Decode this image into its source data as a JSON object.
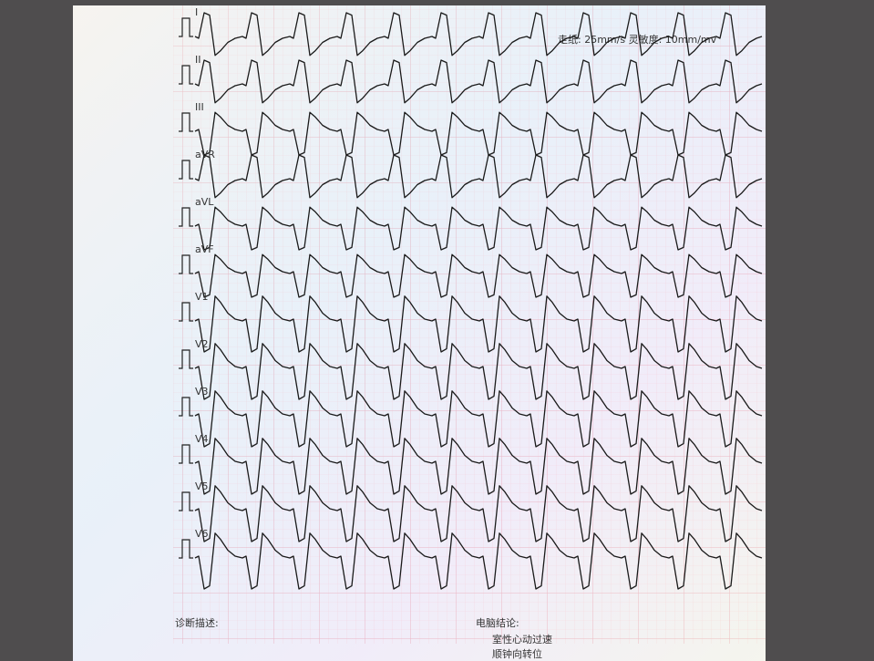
{
  "header": {
    "settings": "走纸: 25mm/s 灵敏度: 10mm/mv"
  },
  "leads": [
    "I",
    "II",
    "III",
    "aVR",
    "aVL",
    "aVF",
    "V1",
    "V2",
    "V3",
    "V4",
    "V5",
    "V6"
  ],
  "footer": {
    "diagnosis_label": "诊断描述:",
    "conclusion_label": "电脑结论:",
    "conclusion_lines": [
      "室性心动过速",
      "顺钟向转位"
    ]
  }
}
